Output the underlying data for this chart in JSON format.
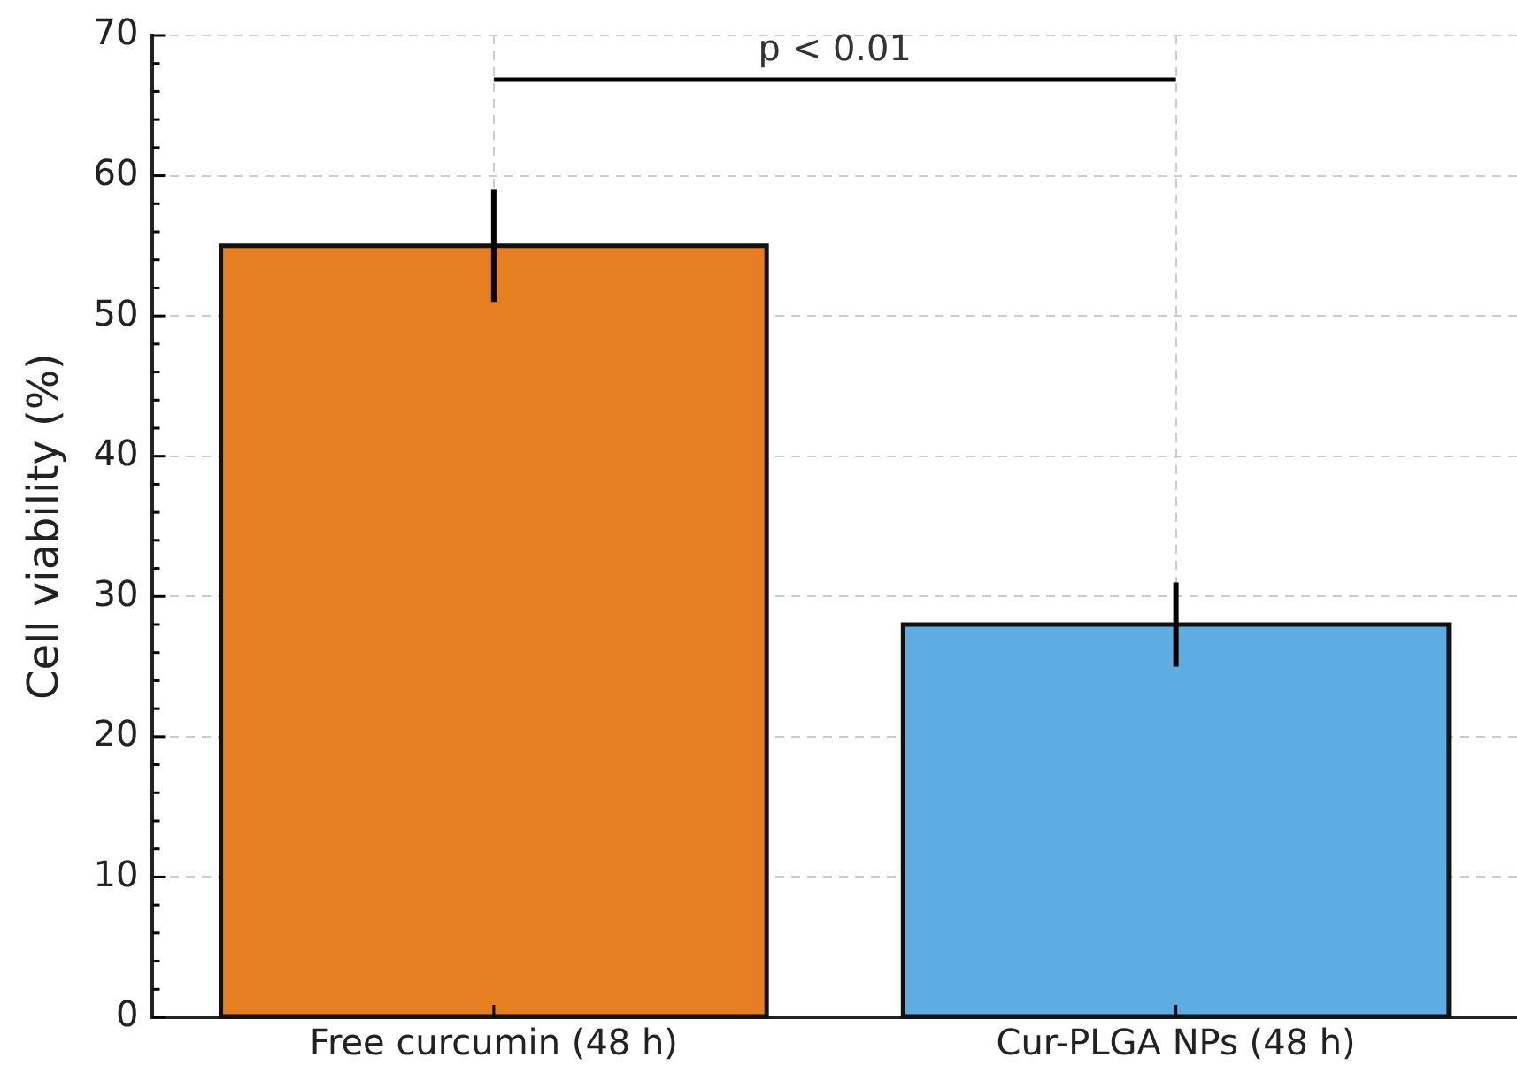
{
  "chart_data": {
    "type": "bar",
    "ylabel": "Cell viability (%)",
    "categories": [
      "Free curcumin (48 h)",
      "Cur-PLGA NPs (48 h)"
    ],
    "values": [
      55,
      28
    ],
    "colors": [
      "#e67e22",
      "#5dade2"
    ],
    "errors": [
      4,
      3
    ],
    "ylim": [
      0,
      70
    ],
    "yticks": [
      0,
      10,
      20,
      30,
      40,
      50,
      60,
      70
    ],
    "grid": true,
    "annotations": [
      "p < 0.01"
    ]
  }
}
